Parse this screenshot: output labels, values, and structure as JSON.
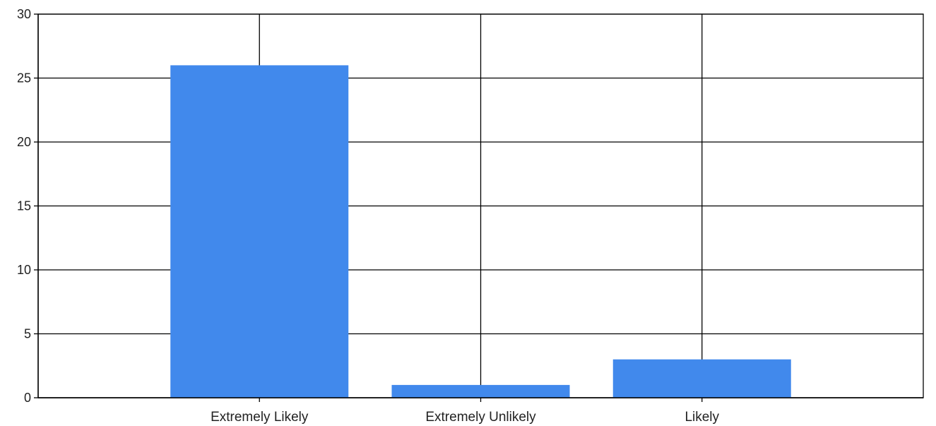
{
  "chart_data": {
    "type": "bar",
    "title": "",
    "xlabel": "",
    "ylabel": "",
    "categories": [
      "Extremely Likely",
      "Extremely Unlikely",
      "Likely"
    ],
    "values": [
      26,
      1,
      3
    ],
    "ylim": [
      0,
      30
    ],
    "yticks": [
      "0",
      "5",
      "10",
      "15",
      "20",
      "25",
      "30"
    ],
    "grid": true,
    "legend": "none",
    "bar_color": "#4189EC",
    "grid_color": "#000000"
  }
}
